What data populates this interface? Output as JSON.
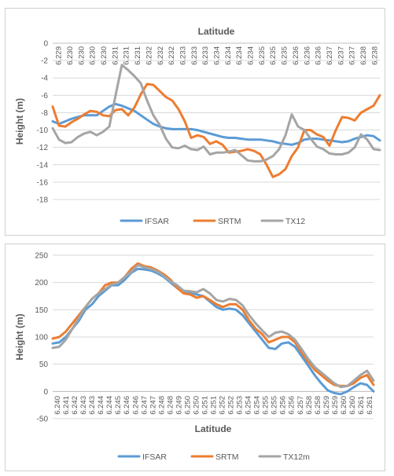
{
  "chart_data": [
    {
      "type": "line",
      "title": "Latitude",
      "xlabel": "",
      "ylabel": "Height (m)",
      "ylim": [
        -18,
        0
      ],
      "yticks": [
        0,
        -2,
        -4,
        -6,
        -8,
        -10,
        -12,
        -14,
        -16,
        -18
      ],
      "x_axis_position": "top",
      "xticks": [
        "6.229",
        "6.230",
        "6.230",
        "6.230",
        "6.230",
        "6.231",
        "6.231",
        "6.231",
        "6.232",
        "6.232",
        "6.232",
        "6.233",
        "6.233",
        "6.233",
        "6.234",
        "6.234",
        "6.234",
        "6.234",
        "6.235",
        "6.235",
        "6.235",
        "6.236",
        "6.236",
        "6.236",
        "6.237",
        "6.237",
        "6.237",
        "6.238",
        "6.238"
      ],
      "legend_position": "bottom",
      "gridlines": true,
      "series": [
        {
          "name": "IFSAR",
          "color": "#5B9BD5",
          "values": [
            -9.0,
            -9.3,
            -9.0,
            -8.7,
            -8.5,
            -8.3,
            -8.3,
            -8.3,
            -7.8,
            -7.3,
            -7.0,
            -7.2,
            -7.5,
            -7.8,
            -8.3,
            -8.8,
            -9.3,
            -9.6,
            -9.8,
            -9.9,
            -9.9,
            -9.9,
            -9.9,
            -10.0,
            -10.2,
            -10.4,
            -10.6,
            -10.8,
            -10.9,
            -10.9,
            -11.0,
            -11.1,
            -11.1,
            -11.1,
            -11.2,
            -11.3,
            -11.5,
            -11.6,
            -11.7,
            -11.5,
            -11.1,
            -11.0,
            -11.0,
            -11.1,
            -11.2,
            -11.3,
            -11.4,
            -11.3,
            -11.0,
            -10.8,
            -10.6,
            -10.7,
            -11.2
          ]
        },
        {
          "name": "SRTM",
          "color": "#ED7D31",
          "values": [
            -7.3,
            -9.5,
            -9.6,
            -9.1,
            -8.7,
            -8.2,
            -7.8,
            -7.9,
            -8.3,
            -8.4,
            -7.7,
            -7.6,
            -8.3,
            -7.4,
            -5.9,
            -4.7,
            -4.8,
            -5.5,
            -6.2,
            -6.6,
            -7.6,
            -9.0,
            -10.9,
            -10.6,
            -10.8,
            -11.6,
            -11.3,
            -11.7,
            -12.6,
            -12.5,
            -12.4,
            -12.2,
            -12.4,
            -12.8,
            -14.0,
            -15.4,
            -15.1,
            -14.5,
            -13.0,
            -12.0,
            -10.0,
            -10.0,
            -10.5,
            -10.8,
            -11.8,
            -10.0,
            -8.5,
            -8.6,
            -8.9,
            -8.0,
            -7.6,
            -7.2,
            -6.0
          ]
        },
        {
          "name": "TX12",
          "color": "#A5A5A5",
          "values": [
            -9.8,
            -11.1,
            -11.5,
            -11.4,
            -10.8,
            -10.4,
            -10.2,
            -10.6,
            -10.2,
            -9.6,
            -6.0,
            -2.5,
            -3.1,
            -3.8,
            -4.6,
            -6.6,
            -8.3,
            -9.4,
            -11.0,
            -12.0,
            -12.1,
            -11.8,
            -12.2,
            -12.3,
            -11.9,
            -12.8,
            -12.6,
            -12.6,
            -12.5,
            -12.3,
            -12.9,
            -13.5,
            -13.6,
            -13.6,
            -13.4,
            -13.0,
            -12.2,
            -10.6,
            -8.2,
            -9.6,
            -10.0,
            -11.0,
            -11.9,
            -12.2,
            -12.7,
            -12.8,
            -12.8,
            -12.6,
            -12.0,
            -10.5,
            -11.1,
            -12.2,
            -12.3
          ]
        }
      ]
    },
    {
      "type": "line",
      "title": "",
      "xlabel": "Latitude",
      "ylabel": "Height (m)",
      "ylim": [
        -50,
        250
      ],
      "yticks": [
        250,
        200,
        150,
        100,
        50,
        0,
        -50
      ],
      "x_axis_position": "zero",
      "xticks": [
        "6.240",
        "6.241",
        "6.242",
        "6.243",
        "6.243",
        "6.244",
        "6.244",
        "6.245",
        "6.246",
        "6.246",
        "6.247",
        "6.247",
        "6.248",
        "6.248",
        "6.249",
        "6.250",
        "6.250",
        "6.251",
        "6.251",
        "6.252",
        "6.252",
        "6.253",
        "6.254",
        "6.254",
        "6.255",
        "6.255",
        "6.256",
        "6.256",
        "6.257",
        "6.258",
        "6.258",
        "6.259",
        "6.259",
        "6.260",
        "6.260",
        "6.261",
        "6.261"
      ],
      "legend_position": "bottom",
      "gridlines": true,
      "series": [
        {
          "name": "IFSAR",
          "color": "#5B9BD5",
          "values": [
            88,
            90,
            100,
            115,
            130,
            150,
            160,
            175,
            185,
            195,
            195,
            205,
            218,
            225,
            224,
            222,
            217,
            210,
            200,
            190,
            183,
            182,
            178,
            175,
            165,
            155,
            150,
            152,
            150,
            140,
            125,
            110,
            95,
            80,
            78,
            88,
            90,
            82,
            65,
            48,
            30,
            15,
            2,
            -3,
            -5,
            0,
            8,
            15,
            12,
            0
          ]
        },
        {
          "name": "SRTM",
          "color": "#ED7D31",
          "values": [
            97,
            100,
            110,
            125,
            140,
            155,
            170,
            180,
            195,
            200,
            200,
            210,
            225,
            235,
            230,
            228,
            222,
            215,
            205,
            190,
            180,
            178,
            172,
            175,
            168,
            160,
            155,
            160,
            160,
            150,
            130,
            115,
            105,
            90,
            95,
            100,
            100,
            90,
            72,
            55,
            40,
            30,
            20,
            12,
            10,
            10,
            15,
            25,
            30,
            12
          ]
        },
        {
          "name": "TX12m",
          "color": "#A5A5A5",
          "values": [
            80,
            82,
            95,
            115,
            135,
            155,
            170,
            180,
            188,
            196,
            200,
            210,
            220,
            232,
            228,
            225,
            220,
            212,
            202,
            195,
            185,
            184,
            182,
            188,
            180,
            168,
            165,
            170,
            168,
            158,
            140,
            125,
            112,
            100,
            108,
            110,
            105,
            95,
            78,
            60,
            45,
            35,
            25,
            15,
            8,
            10,
            20,
            30,
            38,
            20
          ]
        }
      ]
    }
  ]
}
